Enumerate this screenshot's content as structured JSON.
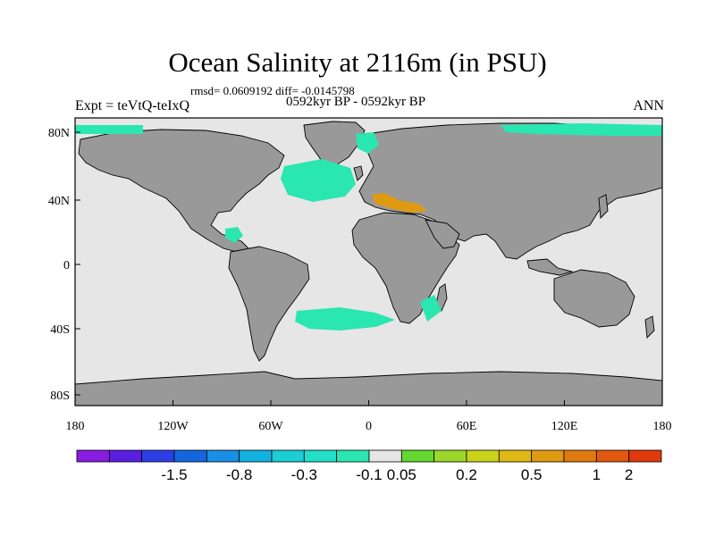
{
  "header": {
    "title": "Ocean Salinity at 2116m (in PSU)",
    "stats": "rmsd= 0.0609192 diff= -0.0145798",
    "experiment": "Expt = teVtQ-teIxQ",
    "period": "0592kyr BP - 0592kyr BP",
    "season": "ANN"
  },
  "axes": {
    "lon_ticks": [
      "180",
      "120W",
      "60W",
      "0",
      "60E",
      "120E",
      "180"
    ],
    "lat_ticks": [
      "80N",
      "40N",
      "0",
      "40S",
      "80S"
    ]
  },
  "colorbar": {
    "colors": [
      "#8a1be0",
      "#5a1ee0",
      "#2e3ee6",
      "#1565e0",
      "#1a8fe6",
      "#12b2e0",
      "#1dcdd6",
      "#22e0c8",
      "#2ae6b0",
      "#e6e6e6",
      "#66d630",
      "#9dd628",
      "#cad31a",
      "#e0b816",
      "#e09a12",
      "#e07a10",
      "#e0590e",
      "#e03a0c"
    ],
    "labels": [
      "-1.5",
      "-0.8",
      "-0.3",
      "-0.1",
      "0.05",
      "0.2",
      "0.5",
      "1",
      "2"
    ]
  },
  "colors": {
    "land": "#999999",
    "ocean_neutral": "#e6e6e6",
    "ocean_negative": "#2ae6b0",
    "ocean_positive": "#e09a12"
  }
}
